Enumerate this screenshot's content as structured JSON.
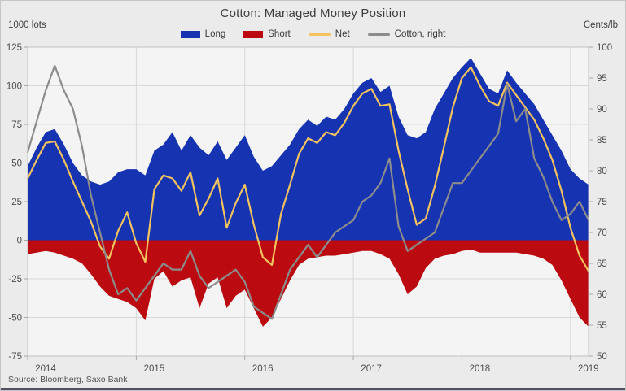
{
  "window": {
    "title": "Cotton: Managed Money Position",
    "left_axis_unit": "1000 lots",
    "right_axis_unit": "Cents/lb",
    "source": "Source: Bloomberg, Saxo Bank"
  },
  "colors": {
    "long": "#1633b2",
    "short": "#bb0a10",
    "net": "#f3c35f",
    "cotton": "#8c8c8c",
    "background": "#ebebeb",
    "plot_background": "#f4f4f4",
    "gridline": "#d8d8d8",
    "plot_border": "#c2c2c2",
    "text": "#3f3f3f"
  },
  "legend": [
    {
      "key": "long",
      "label": "Long",
      "swatch": "area",
      "color": "#1633b2"
    },
    {
      "key": "short",
      "label": "Short",
      "swatch": "area",
      "color": "#bb0a10"
    },
    {
      "key": "net",
      "label": "Net",
      "swatch": "line",
      "color": "#f3c35f"
    },
    {
      "key": "cotton",
      "label": "Cotton, right",
      "swatch": "line",
      "color": "#8c8c8c"
    }
  ],
  "chart_data": {
    "type": "area",
    "title": "Cotton: Managed Money Position",
    "xlabel": "",
    "ylabel_left": "1000 lots",
    "ylabel_right": "Cents/lb",
    "grid": true,
    "legend_position": "top",
    "x_tick_labels": [
      "2014",
      "2015",
      "2016",
      "2017",
      "2018",
      "2019"
    ],
    "left_axis": {
      "title": "1000 lots",
      "range": [
        -75,
        125
      ],
      "ticks": [
        125,
        100,
        75,
        50,
        25,
        0,
        -25,
        -50,
        -75
      ]
    },
    "right_axis": {
      "title": "Cents/lb",
      "range": [
        50,
        100
      ],
      "ticks": [
        100,
        95,
        90,
        85,
        80,
        75,
        70,
        65,
        60,
        55,
        50
      ]
    },
    "x": [
      "2014-01",
      "2014-02",
      "2014-03",
      "2014-04",
      "2014-05",
      "2014-06",
      "2014-07",
      "2014-08",
      "2014-09",
      "2014-10",
      "2014-11",
      "2014-12",
      "2015-01",
      "2015-02",
      "2015-03",
      "2015-04",
      "2015-05",
      "2015-06",
      "2015-07",
      "2015-08",
      "2015-09",
      "2015-10",
      "2015-11",
      "2015-12",
      "2016-01",
      "2016-02",
      "2016-03",
      "2016-04",
      "2016-05",
      "2016-06",
      "2016-07",
      "2016-08",
      "2016-09",
      "2016-10",
      "2016-11",
      "2016-12",
      "2017-01",
      "2017-02",
      "2017-03",
      "2017-04",
      "2017-05",
      "2017-06",
      "2017-07",
      "2017-08",
      "2017-09",
      "2017-10",
      "2017-11",
      "2017-12",
      "2018-01",
      "2018-02",
      "2018-03",
      "2018-04",
      "2018-05",
      "2018-06",
      "2018-07",
      "2018-08",
      "2018-09",
      "2018-10",
      "2018-11",
      "2018-12",
      "2019-01",
      "2019-02",
      "2019-03"
    ],
    "series": [
      {
        "name": "Long",
        "kind": "area",
        "axis": "left",
        "color": "#1633b2",
        "values": [
          48,
          60,
          70,
          72,
          62,
          50,
          42,
          38,
          36,
          38,
          44,
          46,
          46,
          42,
          58,
          62,
          70,
          58,
          68,
          60,
          55,
          64,
          52,
          60,
          68,
          54,
          45,
          48,
          55,
          62,
          72,
          78,
          74,
          80,
          78,
          85,
          95,
          102,
          105,
          96,
          100,
          80,
          68,
          66,
          70,
          85,
          95,
          105,
          112,
          118,
          108,
          98,
          95,
          110,
          102,
          95,
          88,
          78,
          68,
          58,
          46,
          40,
          36
        ]
      },
      {
        "name": "Short",
        "kind": "area",
        "axis": "left",
        "color": "#bb0a10",
        "values": [
          -9,
          -8,
          -7,
          -8,
          -10,
          -12,
          -15,
          -22,
          -30,
          -36,
          -38,
          -40,
          -44,
          -52,
          -25,
          -20,
          -30,
          -26,
          -24,
          -44,
          -28,
          -24,
          -44,
          -36,
          -32,
          -44,
          -56,
          -50,
          -38,
          -26,
          -16,
          -12,
          -11,
          -10,
          -10,
          -9,
          -8,
          -7,
          -7,
          -9,
          -12,
          -22,
          -35,
          -30,
          -18,
          -12,
          -10,
          -9,
          -7,
          -6,
          -8,
          -8,
          -8,
          -8,
          -8,
          -9,
          -10,
          -12,
          -16,
          -26,
          -38,
          -50,
          -56
        ]
      },
      {
        "name": "Net",
        "kind": "line",
        "axis": "left",
        "color": "#f3c35f",
        "values": [
          40,
          52,
          63,
          64,
          52,
          38,
          25,
          12,
          -4,
          -12,
          6,
          18,
          -2,
          -14,
          33,
          42,
          40,
          32,
          44,
          16,
          27,
          40,
          8,
          24,
          36,
          10,
          -11,
          -16,
          17,
          36,
          56,
          66,
          63,
          70,
          68,
          76,
          87,
          95,
          98,
          87,
          88,
          58,
          33,
          10,
          14,
          35,
          60,
          86,
          105,
          112,
          100,
          90,
          87,
          102,
          94,
          86,
          78,
          66,
          52,
          32,
          8,
          -10,
          -20
        ]
      },
      {
        "name": "Cotton, right",
        "kind": "line",
        "axis": "right",
        "color": "#8c8c8c",
        "values": [
          83,
          88,
          93,
          97,
          93,
          90,
          84,
          76,
          70,
          64,
          60,
          61,
          59,
          61,
          63,
          65,
          64,
          64,
          67,
          63,
          61,
          62,
          63,
          64,
          62,
          58,
          57,
          56,
          60,
          64,
          66,
          68,
          66,
          68,
          70,
          71,
          72,
          75,
          76,
          78,
          82,
          71,
          67,
          68,
          69,
          70,
          74,
          78,
          78,
          80,
          82,
          84,
          86,
          94,
          88,
          90,
          82,
          79,
          75,
          72,
          73,
          75,
          72
        ]
      }
    ]
  }
}
